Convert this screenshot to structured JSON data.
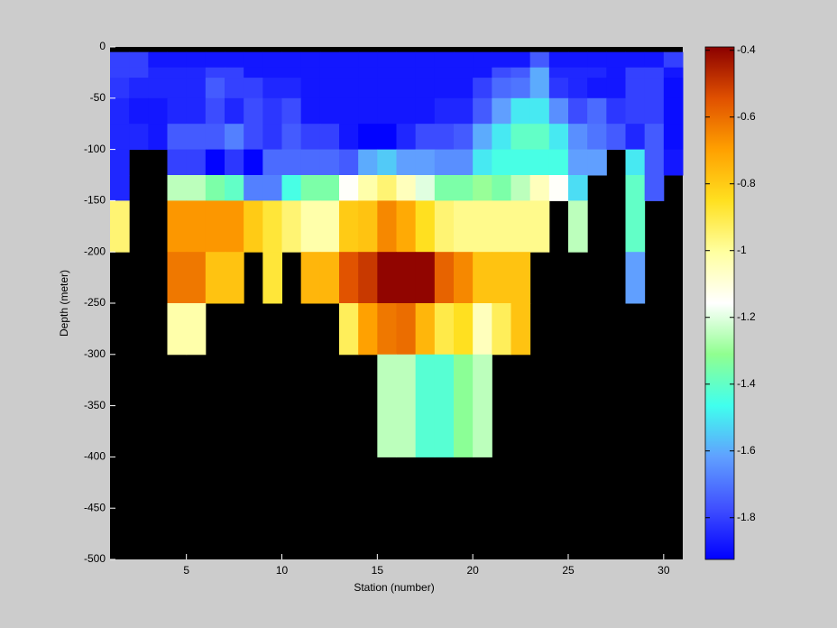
{
  "chart_data": {
    "type": "heatmap",
    "xlabel": "Station (number)",
    "ylabel": "Depth (meter)",
    "xlim": [
      1,
      31
    ],
    "ylim": [
      -500,
      0
    ],
    "xticks": [
      5,
      10,
      15,
      20,
      25,
      30
    ],
    "yticks": [
      0,
      -50,
      -100,
      -150,
      -200,
      -250,
      -300,
      -350,
      -400,
      -450,
      -500
    ],
    "x_edges": [
      1,
      2,
      3,
      4,
      5,
      6,
      7,
      8,
      9,
      10,
      11,
      12,
      13,
      14,
      15,
      16,
      17,
      18,
      19,
      20,
      21,
      22,
      23,
      24,
      25,
      26,
      27,
      28,
      29,
      30,
      31
    ],
    "y_edges": [
      0,
      -5,
      -20,
      -30,
      -50,
      -75,
      -100,
      -125,
      -150,
      -200,
      -250,
      -300,
      -400,
      -500
    ],
    "z": [
      [
        null,
        null,
        null,
        null,
        null,
        null,
        null,
        null,
        null,
        null,
        null,
        null,
        null,
        null,
        null,
        null,
        null,
        null,
        null,
        null,
        null,
        null,
        null,
        null,
        null,
        null,
        null,
        null,
        null,
        null
      ],
      [
        -1.8,
        -1.8,
        -1.88,
        -1.88,
        -1.88,
        -1.88,
        -1.88,
        -1.88,
        -1.88,
        -1.88,
        -1.88,
        -1.88,
        -1.88,
        -1.88,
        -1.88,
        -1.88,
        -1.88,
        -1.88,
        -1.88,
        -1.88,
        -1.88,
        -1.88,
        -1.75,
        -1.88,
        -1.88,
        -1.88,
        -1.88,
        -1.88,
        -1.88,
        -1.8
      ],
      [
        -1.8,
        -1.8,
        -1.85,
        -1.85,
        -1.85,
        -1.8,
        -1.8,
        -1.88,
        -1.88,
        -1.88,
        -1.88,
        -1.88,
        -1.88,
        -1.88,
        -1.88,
        -1.88,
        -1.88,
        -1.88,
        -1.88,
        -1.88,
        -1.78,
        -1.75,
        -1.6,
        -1.85,
        -1.85,
        -1.85,
        -1.88,
        -1.8,
        -1.8,
        -1.88
      ],
      [
        -1.82,
        -1.85,
        -1.85,
        -1.85,
        -1.85,
        -1.75,
        -1.8,
        -1.8,
        -1.85,
        -1.85,
        -1.88,
        -1.88,
        -1.88,
        -1.88,
        -1.88,
        -1.88,
        -1.88,
        -1.88,
        -1.88,
        -1.8,
        -1.72,
        -1.7,
        -1.6,
        -1.82,
        -1.85,
        -1.88,
        -1.88,
        -1.8,
        -1.8,
        -1.9
      ],
      [
        -1.85,
        -1.88,
        -1.88,
        -1.85,
        -1.85,
        -1.78,
        -1.85,
        -1.78,
        -1.82,
        -1.78,
        -1.88,
        -1.88,
        -1.88,
        -1.88,
        -1.88,
        -1.88,
        -1.88,
        -1.85,
        -1.85,
        -1.75,
        -1.62,
        -1.5,
        -1.5,
        -1.65,
        -1.78,
        -1.72,
        -1.82,
        -1.8,
        -1.8,
        -1.9
      ],
      [
        -1.85,
        -1.85,
        -1.88,
        -1.75,
        -1.75,
        -1.75,
        -1.68,
        -1.78,
        -1.82,
        -1.75,
        -1.8,
        -1.8,
        -1.88,
        -1.92,
        -1.92,
        -1.85,
        -1.78,
        -1.78,
        -1.75,
        -1.6,
        -1.5,
        -1.4,
        -1.4,
        -1.5,
        -1.65,
        -1.7,
        -1.75,
        -1.85,
        -1.75,
        -1.9
      ],
      [
        -1.85,
        null,
        null,
        -1.8,
        -1.8,
        -1.92,
        -1.82,
        -1.92,
        -1.72,
        -1.72,
        -1.72,
        -1.72,
        -1.75,
        -1.6,
        -1.55,
        -1.62,
        -1.62,
        -1.65,
        -1.65,
        -1.5,
        -1.45,
        -1.45,
        -1.45,
        -1.45,
        -1.62,
        -1.62,
        null,
        -1.5,
        -1.75,
        -1.88
      ],
      [
        -1.85,
        null,
        null,
        -1.25,
        -1.25,
        -1.35,
        -1.4,
        -1.68,
        -1.68,
        -1.45,
        -1.35,
        -1.35,
        -1.15,
        -1.02,
        -0.95,
        -1.05,
        -1.2,
        -1.35,
        -1.35,
        -1.3,
        -1.35,
        -1.25,
        -1.05,
        -1.15,
        -1.52,
        null,
        null,
        -1.4,
        -1.75,
        null
      ],
      [
        -0.95,
        null,
        null,
        -0.68,
        -0.68,
        -0.68,
        -0.68,
        -0.8,
        -0.88,
        -0.95,
        -1.02,
        -1.02,
        -0.8,
        -0.78,
        -0.65,
        -0.72,
        -0.85,
        -0.95,
        -0.98,
        -0.98,
        -0.98,
        -0.98,
        -0.98,
        null,
        -1.25,
        null,
        null,
        -1.4,
        null,
        null
      ],
      [
        null,
        null,
        null,
        -0.62,
        -0.62,
        -0.78,
        -0.78,
        null,
        -0.88,
        null,
        -0.75,
        -0.75,
        -0.55,
        -0.5,
        -0.4,
        -0.4,
        -0.4,
        -0.58,
        -0.65,
        -0.78,
        -0.78,
        -0.78,
        null,
        null,
        null,
        null,
        null,
        -1.62,
        null,
        null
      ],
      [
        null,
        null,
        null,
        -1.02,
        -1.02,
        null,
        null,
        null,
        null,
        null,
        null,
        null,
        -0.92,
        -0.7,
        -0.62,
        -0.6,
        -0.75,
        -0.9,
        -0.85,
        -1.05,
        -0.92,
        -0.78,
        null,
        null,
        null,
        null,
        null,
        null,
        null,
        null
      ],
      [
        null,
        null,
        null,
        null,
        null,
        null,
        null,
        null,
        null,
        null,
        null,
        null,
        null,
        null,
        -1.25,
        -1.25,
        -1.42,
        -1.42,
        -1.32,
        -1.25,
        null,
        null,
        null,
        null,
        null,
        null,
        null,
        null,
        null,
        null
      ],
      [
        null,
        null,
        null,
        null,
        null,
        null,
        null,
        null,
        null,
        null,
        null,
        null,
        null,
        null,
        null,
        null,
        null,
        null,
        null,
        null,
        null,
        null,
        null,
        null,
        null,
        null,
        null,
        null,
        null,
        null
      ]
    ],
    "missing_color": "#000000",
    "clim": [
      -1.925,
      -0.39
    ],
    "colormap": [
      "#0000ff",
      "#4050ff",
      "#60a0ff",
      "#40ffee",
      "#90ff90",
      "#ffffff",
      "#ffffa0",
      "#ffe020",
      "#ffa000",
      "#e05000",
      "#8b0000"
    ],
    "colorbar_ticks": [
      -0.4,
      -0.6,
      -0.8,
      -1,
      -1.2,
      -1.4,
      -1.6,
      -1.8
    ]
  }
}
